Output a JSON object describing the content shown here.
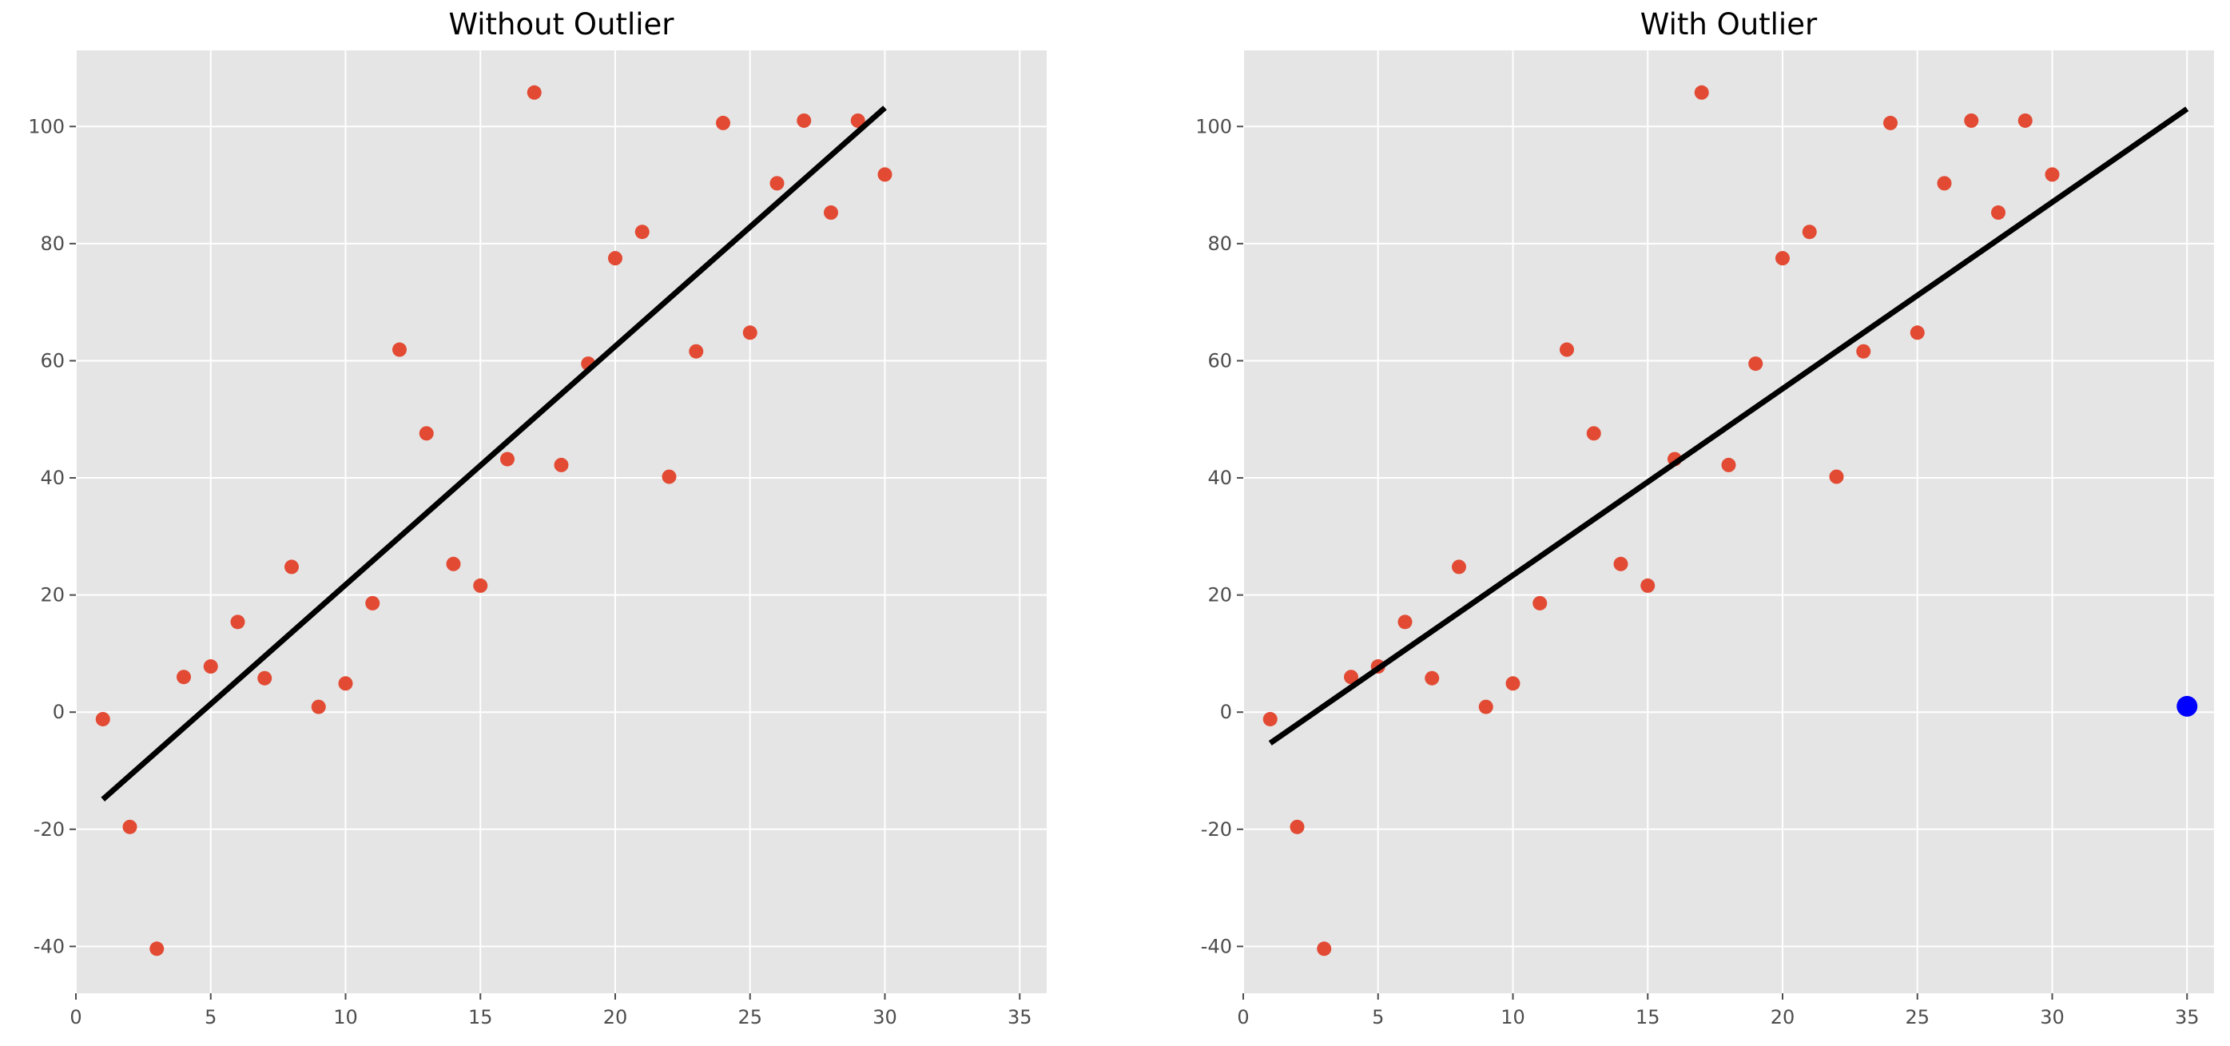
{
  "chart_data": [
    {
      "type": "scatter",
      "title": "Without Outlier",
      "xlabel": "",
      "ylabel": "",
      "xlim": [
        0,
        36
      ],
      "ylim": [
        -48,
        113
      ],
      "xticks": [
        0,
        5,
        10,
        15,
        20,
        25,
        30,
        35
      ],
      "yticks": [
        -40,
        -20,
        0,
        20,
        40,
        60,
        80,
        100
      ],
      "grid": true,
      "point_color": "#e24a33",
      "line_color": "#000000",
      "points": {
        "x": [
          1,
          2,
          3,
          4,
          5,
          6,
          7,
          8,
          9,
          10,
          11,
          12,
          13,
          14,
          15,
          16,
          17,
          18,
          19,
          20,
          21,
          22,
          23,
          24,
          25,
          26,
          27,
          28,
          29,
          30
        ],
        "y": [
          -1.2,
          -19.6,
          -40.4,
          6.0,
          7.8,
          15.4,
          5.8,
          24.8,
          0.9,
          4.9,
          18.6,
          61.9,
          47.6,
          25.3,
          21.6,
          43.2,
          105.8,
          42.2,
          59.5,
          77.5,
          82.0,
          40.2,
          61.6,
          100.6,
          64.8,
          90.3,
          101.0,
          85.3,
          101.0,
          91.8
        ]
      },
      "fit_line": {
        "x": [
          1,
          30
        ],
        "y": [
          -14.9,
          103.2
        ]
      },
      "outlier": null
    },
    {
      "type": "scatter",
      "title": "With Outlier",
      "xlabel": "",
      "ylabel": "",
      "xlim": [
        0,
        36
      ],
      "ylim": [
        -48,
        113
      ],
      "xticks": [
        0,
        5,
        10,
        15,
        20,
        25,
        30,
        35
      ],
      "yticks": [
        -40,
        -20,
        0,
        20,
        40,
        60,
        80,
        100
      ],
      "grid": true,
      "point_color": "#e24a33",
      "line_color": "#000000",
      "points": {
        "x": [
          1,
          2,
          3,
          4,
          5,
          6,
          7,
          8,
          9,
          10,
          11,
          12,
          13,
          14,
          15,
          16,
          17,
          18,
          19,
          20,
          21,
          22,
          23,
          24,
          25,
          26,
          27,
          28,
          29,
          30
        ],
        "y": [
          -1.2,
          -19.6,
          -40.4,
          6.0,
          7.8,
          15.4,
          5.8,
          24.8,
          0.9,
          4.9,
          18.6,
          61.9,
          47.6,
          25.3,
          21.6,
          43.2,
          105.8,
          42.2,
          59.5,
          77.5,
          82.0,
          40.2,
          61.6,
          100.6,
          64.8,
          90.3,
          101.0,
          85.3,
          101.0,
          91.8
        ]
      },
      "fit_line": {
        "x": [
          1,
          35
        ],
        "y": [
          -5.3,
          103.0
        ]
      },
      "outlier": {
        "x": 35,
        "y": 1.0,
        "color": "#0000ff"
      }
    }
  ]
}
